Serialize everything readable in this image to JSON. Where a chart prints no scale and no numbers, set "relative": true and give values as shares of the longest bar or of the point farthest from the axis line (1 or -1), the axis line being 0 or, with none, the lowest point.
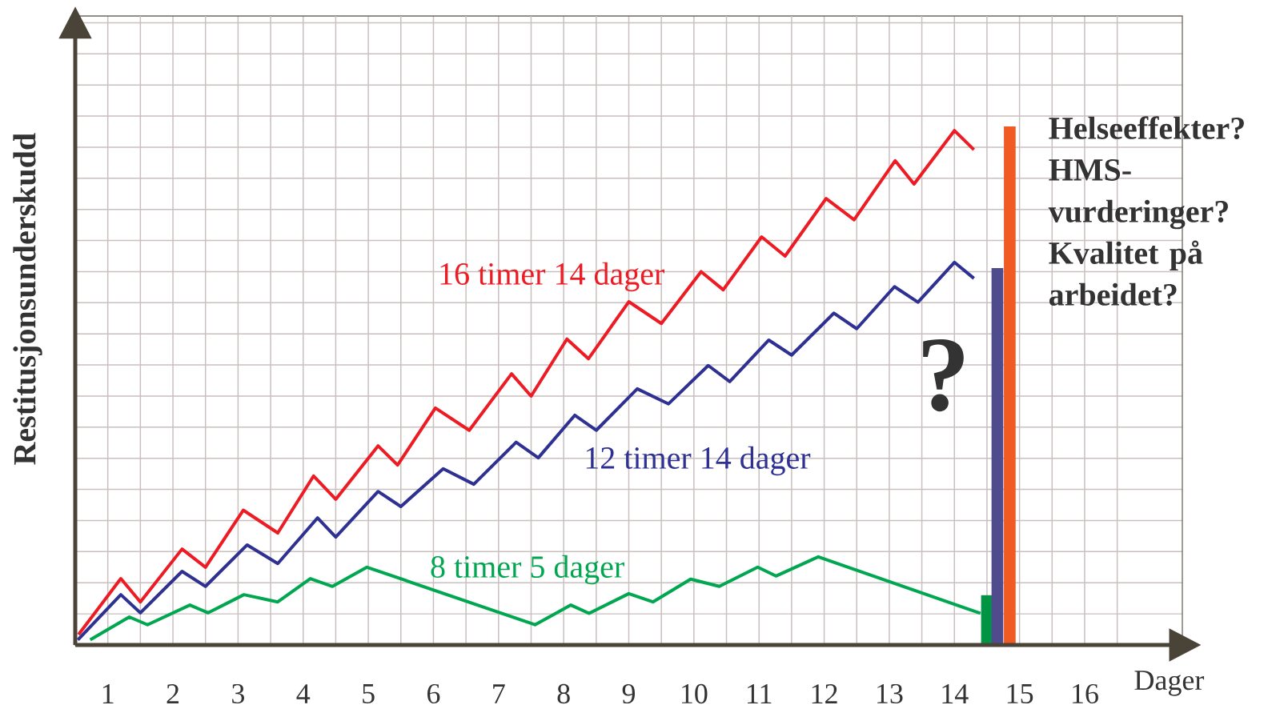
{
  "chart_data": {
    "type": "line",
    "relative": true,
    "xlabel": "Dager",
    "ylabel": "Restitusjonsunderskudd",
    "xlim": [
      0,
      17
    ],
    "grid": true,
    "xticks": [
      {
        "value": 0,
        "label": null
      },
      {
        "value": 0.5,
        "label": "1"
      },
      {
        "value": 1,
        "label": null
      },
      {
        "value": 1.5,
        "label": "2"
      },
      {
        "value": 2,
        "label": null
      },
      {
        "value": 2.5,
        "label": "3"
      },
      {
        "value": 3,
        "label": null
      },
      {
        "value": 3.5,
        "label": "4"
      },
      {
        "value": 4,
        "label": null
      },
      {
        "value": 4.5,
        "label": "5"
      },
      {
        "value": 5,
        "label": null
      },
      {
        "value": 5.5,
        "label": "6"
      },
      {
        "value": 6,
        "label": null
      },
      {
        "value": 6.5,
        "label": "7"
      },
      {
        "value": 7,
        "label": null
      },
      {
        "value": 7.5,
        "label": "8"
      },
      {
        "value": 8,
        "label": null
      },
      {
        "value": 8.5,
        "label": "9"
      },
      {
        "value": 9,
        "label": null
      },
      {
        "value": 9.5,
        "label": "10"
      },
      {
        "value": 10,
        "label": null
      },
      {
        "value": 10.5,
        "label": "11"
      },
      {
        "value": 11,
        "label": null
      },
      {
        "value": 11.5,
        "label": "12"
      },
      {
        "value": 12,
        "label": null
      },
      {
        "value": 12.5,
        "label": "13"
      },
      {
        "value": 13,
        "label": null
      },
      {
        "value": 13.5,
        "label": "14"
      },
      {
        "value": 14,
        "label": null
      },
      {
        "value": 14.5,
        "label": "15"
      },
      {
        "value": 15,
        "label": null
      },
      {
        "value": 15.5,
        "label": "16"
      },
      {
        "value": 16,
        "label": null
      }
    ],
    "annotations": [
      "?",
      "Helseeffekter?",
      "HMS-vurderinger?",
      "Kvalitet på arbeidet?"
    ],
    "series": [
      {
        "name": "16 timer 14 dager",
        "color": "#ed1c24",
        "x": [
          0.05,
          0.7,
          1.0,
          1.64,
          2.0,
          2.58,
          3.11,
          3.66,
          4.0,
          4.65,
          4.95,
          5.53,
          6.05,
          6.7,
          7.0,
          7.55,
          7.88,
          8.5,
          9.0,
          9.61,
          9.95,
          10.54,
          10.9,
          11.53,
          11.96,
          12.59,
          12.88,
          13.5,
          13.8
        ],
        "values": [
          0.02,
          0.128,
          0.083,
          0.185,
          0.15,
          0.26,
          0.216,
          0.326,
          0.281,
          0.384,
          0.347,
          0.457,
          0.414,
          0.523,
          0.48,
          0.59,
          0.552,
          0.662,
          0.62,
          0.72,
          0.685,
          0.787,
          0.75,
          0.861,
          0.82,
          0.934,
          0.889,
          0.992,
          0.955
        ]
      },
      {
        "name": "12 timer 14 dager",
        "color": "#2e3192",
        "x": [
          0.04,
          0.7,
          1.0,
          1.64,
          2.0,
          2.64,
          3.11,
          3.72,
          4.0,
          4.65,
          5.0,
          5.65,
          6.12,
          6.77,
          7.11,
          7.67,
          8.0,
          8.63,
          9.11,
          9.72,
          10.05,
          10.65,
          11.0,
          11.65,
          12.0,
          12.58,
          12.94,
          13.5,
          13.8
        ],
        "values": [
          0.01,
          0.097,
          0.062,
          0.142,
          0.113,
          0.193,
          0.157,
          0.245,
          0.208,
          0.296,
          0.267,
          0.34,
          0.31,
          0.391,
          0.361,
          0.443,
          0.414,
          0.494,
          0.465,
          0.539,
          0.508,
          0.588,
          0.559,
          0.64,
          0.61,
          0.691,
          0.661,
          0.738,
          0.707
        ]
      },
      {
        "name": "8 timer 5 dager",
        "color": "#00a650",
        "x": [
          0.23,
          0.83,
          1.11,
          1.76,
          2.04,
          2.59,
          3.11,
          3.61,
          3.95,
          4.48,
          7.06,
          7.61,
          7.89,
          8.5,
          8.87,
          9.45,
          9.89,
          10.48,
          10.76,
          11.41,
          13.9
        ],
        "values": [
          0.01,
          0.054,
          0.039,
          0.077,
          0.062,
          0.097,
          0.083,
          0.128,
          0.113,
          0.15,
          0.039,
          0.077,
          0.061,
          0.099,
          0.083,
          0.127,
          0.113,
          0.15,
          0.133,
          0.17,
          0.061
        ]
      },
      {
        "type": "bar",
        "x": [
          14.0,
          14.16,
          14.35
        ],
        "values": [
          0.096,
          0.727,
          1.0
        ],
        "colors": [
          "#009444",
          "#4f4b8c",
          "#f15a22"
        ]
      }
    ]
  }
}
